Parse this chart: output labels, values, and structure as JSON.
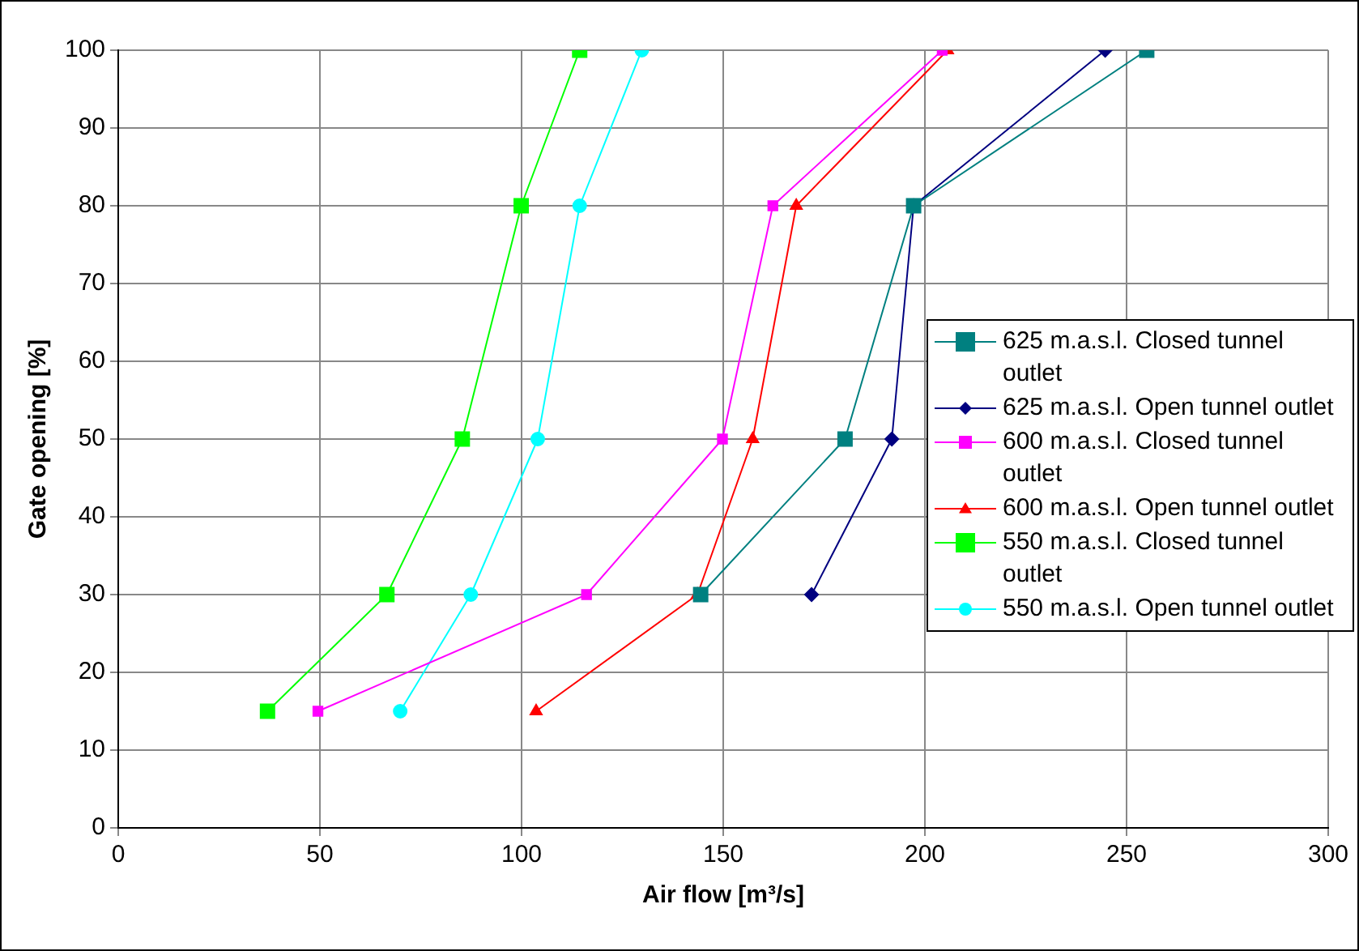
{
  "chart_data": {
    "type": "line",
    "xlabel": "Air flow [m³/s]",
    "ylabel": "Gate opening [%]",
    "xlim": [
      0,
      300
    ],
    "xticks": [
      0,
      50,
      100,
      150,
      200,
      250,
      300
    ],
    "ylim": [
      0,
      100
    ],
    "yticks": [
      0,
      10,
      20,
      30,
      40,
      50,
      60,
      70,
      80,
      90,
      100
    ],
    "grid": true,
    "legend": "right",
    "line_style": "solid",
    "series": [
      {
        "name": "625 m.a.s.l. Closed tunnel outlet",
        "color": "#008080",
        "marker": "square",
        "x": [
          144.4,
          180.2,
          197.2,
          255
        ],
        "values": [
          30,
          50,
          80,
          100
        ]
      },
      {
        "name": "625 m.a.s.l. Open tunnel outlet",
        "color": "#000080",
        "marker": "diamond",
        "x": [
          171.9,
          191.8,
          197.2,
          244.7
        ],
        "values": [
          30,
          50,
          80,
          100
        ]
      },
      {
        "name": "600 m.a.s.l. Closed tunnel outlet",
        "color": "#ff00ff",
        "marker": "square",
        "x": [
          49.5,
          116.1,
          149.8,
          162.3,
          204.3
        ],
        "values": [
          15,
          30,
          50,
          80,
          100
        ]
      },
      {
        "name": "600 m.a.s.l. Open tunnel outlet",
        "color": "#ff0000",
        "marker": "triangle",
        "x": [
          103.6,
          143.6,
          157.3,
          168.1,
          205.6
        ],
        "values": [
          15,
          30,
          50,
          80,
          100
        ]
      },
      {
        "name": "550 m.a.s.l. Closed tunnel outlet",
        "color": "#00ff00",
        "marker": "square",
        "x": [
          37,
          66.6,
          85.3,
          99.9,
          114.4
        ],
        "values": [
          15,
          30,
          50,
          80,
          100
        ]
      },
      {
        "name": "550 m.a.s.l. Open tunnel outlet",
        "color": "#00ffff",
        "marker": "circle",
        "x": [
          69.9,
          87.4,
          104,
          114.4,
          129.8
        ],
        "values": [
          15,
          30,
          50,
          80,
          100
        ]
      }
    ]
  }
}
